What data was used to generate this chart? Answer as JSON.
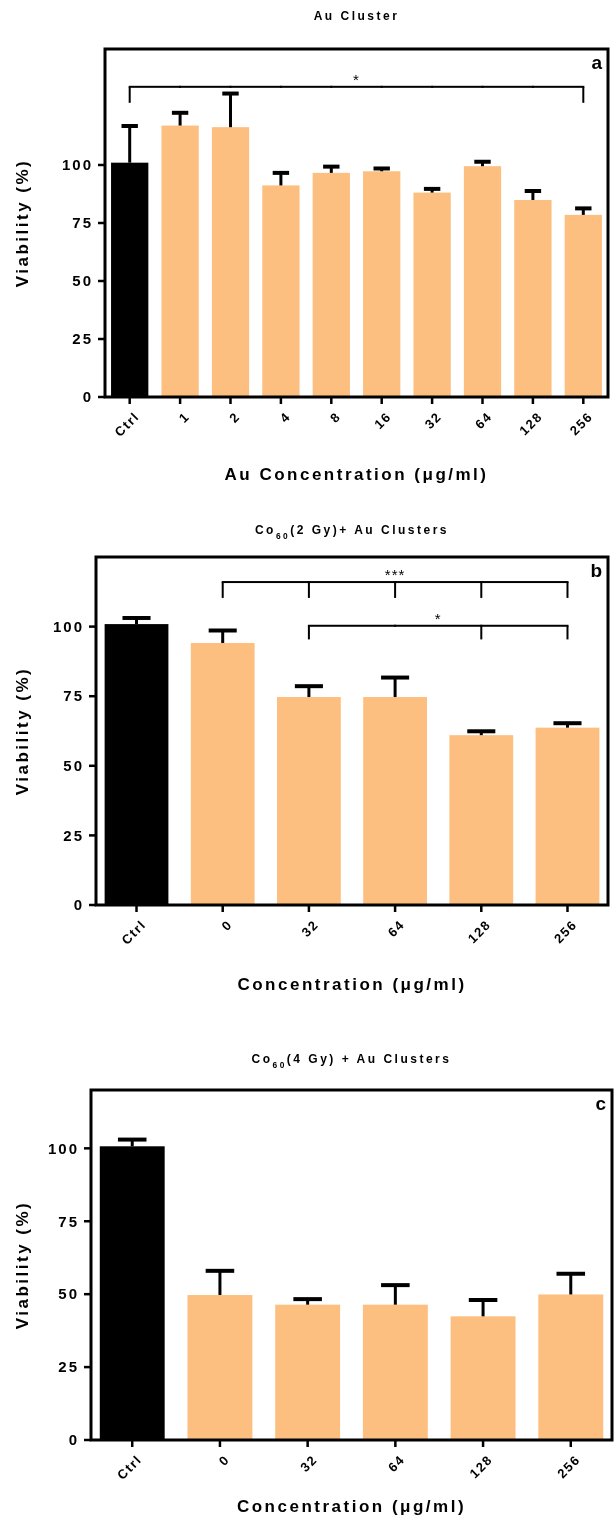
{
  "chart_data": [
    {
      "type": "bar",
      "title": "Au Cluster",
      "xlabel": "Au Concentration (μg/ml)",
      "ylabel": "Viability (%)",
      "categories": [
        "Ctrl",
        "1",
        "2",
        "4",
        "8",
        "16",
        "32",
        "64",
        "128",
        "256"
      ],
      "values": [
        101,
        117,
        116.3,
        91.2,
        96.6,
        97.3,
        88.1,
        99.5,
        84.9,
        78.5
      ],
      "errors": [
        [
          101,
          116.8
        ],
        [
          117,
          122.5
        ],
        [
          116.3,
          130.8
        ],
        [
          91.2,
          96.6
        ],
        [
          96.6,
          99.3
        ],
        [
          97.3,
          98.5
        ],
        [
          88.1,
          89.7
        ],
        [
          99.5,
          101.4
        ],
        [
          84.9,
          88.8
        ],
        [
          78.5,
          81.3
        ]
      ],
      "colors": [
        "#000000",
        "#fdbf80",
        "#fdbf80",
        "#fdbf80",
        "#fdbf80",
        "#fdbf80",
        "#fdbf80",
        "#fdbf80",
        "#fdbf80",
        "#fdbf80"
      ],
      "ylim": [
        0,
        150
      ],
      "yticks": [
        0,
        25,
        50,
        75,
        100
      ],
      "grid": false,
      "annotations": [
        "a",
        "*"
      ]
    },
    {
      "type": "bar",
      "title": "Co$_{60}$(2 Gy)+ Au Clusters",
      "xlabel": "Concentration (μg/ml)",
      "ylabel": "Viability (%)",
      "categories": [
        "Ctrl",
        "0",
        "32",
        "64",
        "128",
        "256"
      ],
      "values": [
        100.9,
        94.1,
        74.7,
        74.7,
        61,
        63.7
      ],
      "errors": [
        [
          100.9,
          103.1
        ],
        [
          94.1,
          98.6
        ],
        [
          74.7,
          78.6
        ],
        [
          74.7,
          81.7
        ],
        [
          61,
          62.4
        ],
        [
          63.7,
          65.3
        ]
      ],
      "colors": [
        "#000000",
        "#fdbf80",
        "#fdbf80",
        "#fdbf80",
        "#fdbf80",
        "#fdbf80"
      ],
      "ylim": [
        0,
        125
      ],
      "yticks": [
        0,
        25,
        50,
        75,
        100
      ],
      "grid": false,
      "annotations": [
        "b",
        "***",
        "*"
      ]
    },
    {
      "type": "bar",
      "title": "Co$_{60}$(4 Gy) + Au Clusters",
      "xlabel": "Concentration (μg/ml)",
      "ylabel": "Viability (%)",
      "categories": [
        "Ctrl",
        "0",
        "32",
        "64",
        "128",
        "256"
      ],
      "values": [
        100.7,
        49.7,
        46.4,
        46.4,
        42.4,
        49.9
      ],
      "errors": [
        [
          100.7,
          103
        ],
        [
          49.7,
          58
        ],
        [
          46.4,
          48.3
        ],
        [
          46.4,
          53.1
        ],
        [
          42.4,
          48
        ],
        [
          49.9,
          57
        ]
      ],
      "colors": [
        "#000000",
        "#fdbf80",
        "#fdbf80",
        "#fdbf80",
        "#fdbf80",
        "#fdbf80"
      ],
      "ylim": [
        0,
        120
      ],
      "yticks": [
        0,
        25,
        50,
        75,
        100
      ],
      "grid": false,
      "annotations": [
        "c"
      ]
    }
  ]
}
